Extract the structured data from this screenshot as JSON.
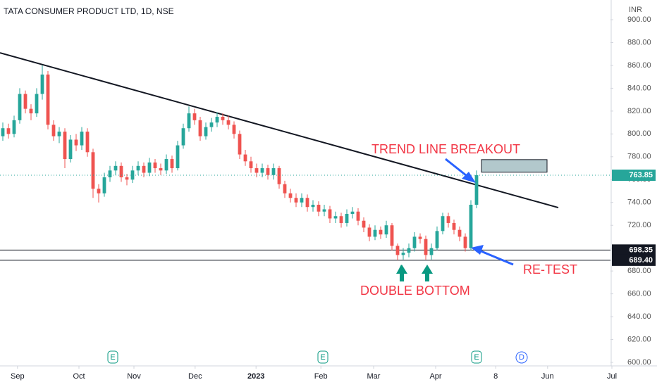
{
  "chart_data": {
    "type": "candlestick",
    "title": "TATA CONSUMER PRODUCT LTD, 1D, NSE",
    "currency": "INR",
    "up_color": "#26a69a",
    "down_color": "#ef5350",
    "grid": false,
    "open": [
      798,
      805,
      800,
      812,
      835,
      822,
      818,
      835,
      852,
      808,
      798,
      802,
      778,
      795,
      790,
      802,
      784,
      752,
      748,
      762,
      768,
      772,
      762,
      760,
      768,
      772,
      766,
      775,
      770,
      768,
      778,
      770,
      790,
      805,
      818,
      812,
      798,
      806,
      810,
      815,
      812,
      808,
      800,
      782,
      776,
      770,
      766,
      770,
      764,
      770,
      756,
      748,
      744,
      740,
      744,
      736,
      738,
      732,
      734,
      726,
      728,
      722,
      730,
      732,
      724,
      718,
      710,
      716,
      712,
      720,
      702,
      694,
      696,
      700,
      710,
      708,
      694,
      700,
      715,
      728,
      722,
      716,
      710,
      700,
      738
    ],
    "high": [
      810,
      809,
      816,
      840,
      838,
      826,
      840,
      860,
      855,
      812,
      806,
      805,
      799,
      800,
      806,
      805,
      787,
      756,
      766,
      772,
      776,
      775,
      765,
      772,
      776,
      775,
      779,
      778,
      774,
      782,
      781,
      794,
      809,
      824,
      822,
      815,
      810,
      814,
      819,
      818,
      816,
      811,
      803,
      786,
      780,
      774,
      774,
      773,
      774,
      772,
      759,
      752,
      748,
      748,
      747,
      742,
      741,
      738,
      737,
      732,
      731,
      734,
      736,
      735,
      727,
      721,
      720,
      719,
      724,
      722,
      704,
      700,
      704,
      714,
      713,
      711,
      704,
      719,
      731,
      731,
      725,
      719,
      713,
      742,
      768
    ],
    "low": [
      794,
      796,
      797,
      809,
      818,
      812,
      815,
      830,
      804,
      794,
      792,
      770,
      775,
      785,
      786,
      780,
      744,
      740,
      745,
      758,
      764,
      758,
      755,
      757,
      764,
      762,
      763,
      766,
      764,
      765,
      766,
      768,
      787,
      802,
      808,
      794,
      795,
      802,
      806,
      808,
      804,
      796,
      778,
      772,
      766,
      762,
      762,
      760,
      760,
      752,
      744,
      740,
      736,
      736,
      732,
      732,
      728,
      728,
      722,
      722,
      718,
      719,
      726,
      720,
      714,
      706,
      707,
      708,
      709,
      698,
      689.4,
      690,
      692,
      697,
      704,
      690,
      690,
      698,
      712,
      718,
      712,
      706,
      697,
      698,
      735
    ],
    "close": [
      805,
      800,
      812,
      835,
      822,
      818,
      835,
      852,
      808,
      798,
      802,
      778,
      795,
      790,
      802,
      784,
      752,
      748,
      762,
      768,
      772,
      762,
      760,
      768,
      772,
      766,
      775,
      770,
      768,
      778,
      770,
      790,
      805,
      818,
      812,
      798,
      806,
      810,
      815,
      812,
      808,
      800,
      782,
      776,
      770,
      766,
      770,
      764,
      770,
      756,
      748,
      744,
      740,
      744,
      736,
      738,
      732,
      734,
      726,
      728,
      722,
      730,
      732,
      724,
      718,
      710,
      716,
      712,
      720,
      702,
      694,
      696,
      700,
      710,
      708,
      694,
      700,
      715,
      728,
      722,
      716,
      710,
      700,
      738,
      763.85
    ],
    "last_price_label": "763.85",
    "xlim": [
      -0.5,
      107.75
    ],
    "xticks": [
      {
        "value": 2.6,
        "label": "Sep"
      },
      {
        "value": 13.5,
        "label": "Oct"
      },
      {
        "value": 23.25,
        "label": "Nov"
      },
      {
        "value": 34.1,
        "label": "Dec"
      },
      {
        "value": 44.9,
        "label": "2023"
      },
      {
        "value": 56.4,
        "label": "Feb"
      },
      {
        "value": 65.75,
        "label": "Mar"
      },
      {
        "value": 76.75,
        "label": "Apr"
      },
      {
        "value": 87.4,
        "label": "8"
      },
      {
        "value": 96.6,
        "label": "Jun"
      },
      {
        "value": 108,
        "label": "Jul"
      }
    ],
    "ylim": [
      600,
      900
    ],
    "yticks": [
      {
        "value": 600,
        "label": "600.00"
      },
      {
        "value": 620,
        "label": "620.00"
      },
      {
        "value": 640,
        "label": "640.00"
      },
      {
        "value": 660,
        "label": "660.00"
      },
      {
        "value": 680,
        "label": "680.00"
      },
      {
        "value": 700,
        "label": "700.00"
      },
      {
        "value": 720,
        "label": "720.00"
      },
      {
        "value": 740,
        "label": "740.00"
      },
      {
        "value": 760,
        "label": "760.00"
      },
      {
        "value": 780,
        "label": "780.00"
      },
      {
        "value": 800,
        "label": "800.00"
      },
      {
        "value": 820,
        "label": "820.00"
      },
      {
        "value": 840,
        "label": "840.00"
      },
      {
        "value": 860,
        "label": "860.00"
      },
      {
        "value": 880,
        "label": "880.00"
      },
      {
        "value": 900,
        "label": "900.00"
      }
    ],
    "hlines": [
      {
        "value": 698.35,
        "label": "698.35"
      },
      {
        "value": 689.4,
        "label": "689.40"
      }
    ],
    "trendline": {
      "start": 871,
      "end": 735.5
    },
    "target_box": {
      "top": 777.5,
      "bottom": 766.5
    },
    "annotations": [
      "TREND LINE BREAKOUT",
      "DOUBLE BOTTOM",
      "RE-TEST"
    ],
    "events": [
      "E",
      "E",
      "E",
      "D"
    ]
  }
}
